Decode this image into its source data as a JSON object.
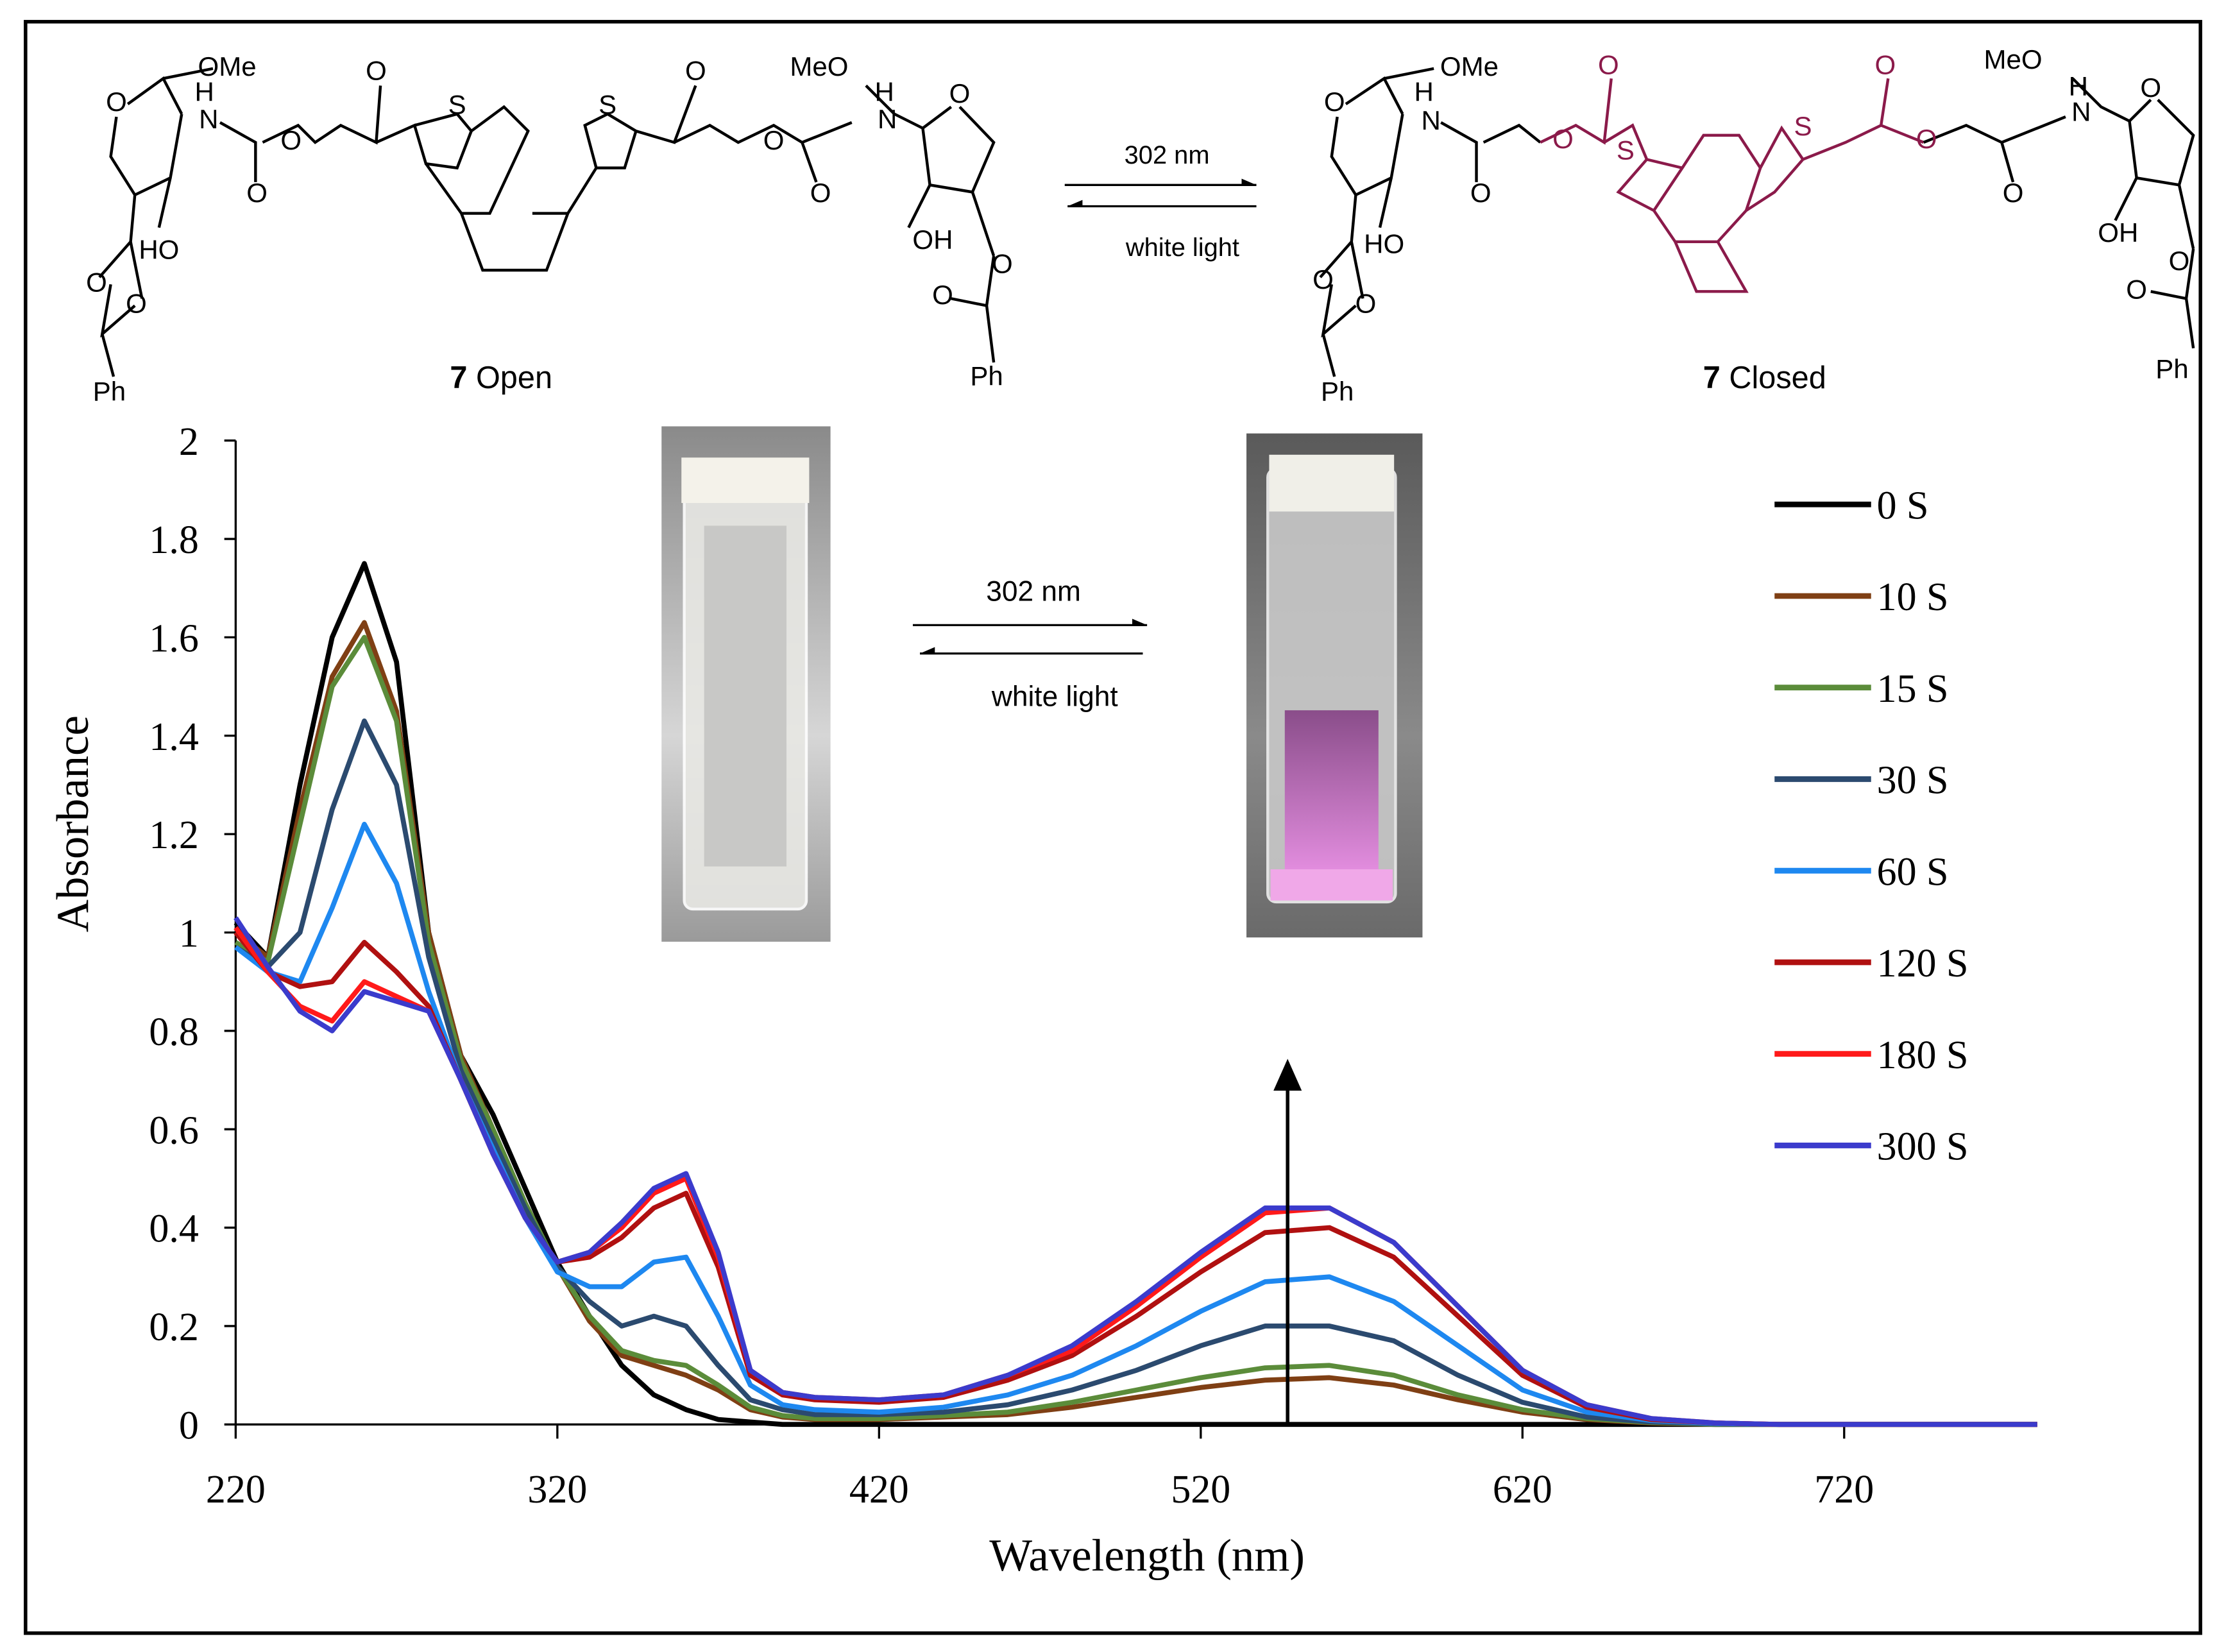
{
  "scheme": {
    "open": {
      "number": "7",
      "name": "Open",
      "atoms": [
        "O",
        "OMe",
        "H",
        "N",
        "O",
        "O",
        "O",
        "S",
        "S",
        "O",
        "O",
        "O",
        "MeO",
        "H",
        "N",
        "O",
        "HO",
        "OH",
        "O",
        "O",
        "O",
        "O",
        "Ph",
        "Ph"
      ]
    },
    "closed": {
      "number": "7",
      "name": "Closed",
      "atoms": [
        "O",
        "OMe",
        "H",
        "N",
        "O",
        "O",
        "O",
        "S",
        "S",
        "O",
        "O",
        "O",
        "MeO",
        "H",
        "N",
        "O",
        "HO",
        "OH",
        "O",
        "O",
        "O",
        "O",
        "Ph",
        "Ph"
      ]
    },
    "top_arrow": {
      "forward": "302 nm",
      "backward": "white light"
    },
    "photo_arrow": {
      "forward": "302 nm",
      "backward": "white light"
    }
  },
  "chart_data": {
    "type": "line",
    "xlabel": "Wavelength (nm)",
    "ylabel": "Absorbance",
    "xlim": [
      220,
      780
    ],
    "ylim": [
      0,
      2
    ],
    "xticks": [
      220,
      320,
      420,
      520,
      620,
      720
    ],
    "yticks": [
      0,
      0.2,
      0.4,
      0.6,
      0.8,
      1,
      1.2,
      1.4,
      1.6,
      1.8,
      2
    ],
    "legend": "right",
    "x": [
      220,
      230,
      240,
      250,
      260,
      270,
      280,
      290,
      300,
      310,
      320,
      330,
      340,
      350,
      360,
      370,
      380,
      390,
      400,
      420,
      440,
      460,
      480,
      500,
      520,
      540,
      560,
      580,
      600,
      620,
      640,
      660,
      680,
      700,
      720,
      740,
      760,
      780
    ],
    "series": [
      {
        "name": "0 S",
        "color": "#000000",
        "values": [
          1.02,
          0.95,
          1.3,
          1.6,
          1.75,
          1.55,
          1.0,
          0.75,
          0.63,
          0.48,
          0.33,
          0.22,
          0.12,
          0.06,
          0.03,
          0.01,
          0.005,
          0,
          0,
          0,
          0,
          0,
          0,
          0,
          0,
          0,
          0,
          0,
          0,
          0,
          0,
          0,
          0,
          0,
          0,
          0,
          0,
          0
        ]
      },
      {
        "name": "10 S",
        "color": "#7f3f14",
        "values": [
          1.0,
          0.95,
          1.25,
          1.52,
          1.63,
          1.45,
          1.0,
          0.75,
          0.6,
          0.45,
          0.32,
          0.21,
          0.14,
          0.12,
          0.1,
          0.07,
          0.03,
          0.015,
          0.01,
          0.01,
          0.015,
          0.02,
          0.035,
          0.055,
          0.075,
          0.09,
          0.095,
          0.08,
          0.05,
          0.025,
          0.01,
          0.003,
          0,
          0,
          0,
          0,
          0,
          0
        ]
      },
      {
        "name": "15 S",
        "color": "#5b8c3a",
        "values": [
          0.98,
          0.94,
          1.22,
          1.5,
          1.6,
          1.43,
          0.98,
          0.74,
          0.6,
          0.45,
          0.32,
          0.22,
          0.15,
          0.13,
          0.12,
          0.08,
          0.035,
          0.018,
          0.012,
          0.012,
          0.018,
          0.025,
          0.045,
          0.07,
          0.095,
          0.115,
          0.12,
          0.1,
          0.06,
          0.03,
          0.012,
          0.004,
          0,
          0,
          0,
          0,
          0,
          0
        ]
      },
      {
        "name": "30 S",
        "color": "#2b4a6f",
        "values": [
          0.97,
          0.93,
          1.0,
          1.25,
          1.43,
          1.3,
          0.95,
          0.72,
          0.58,
          0.44,
          0.32,
          0.25,
          0.2,
          0.22,
          0.2,
          0.12,
          0.05,
          0.03,
          0.02,
          0.02,
          0.025,
          0.04,
          0.07,
          0.11,
          0.16,
          0.2,
          0.2,
          0.17,
          0.1,
          0.045,
          0.015,
          0.005,
          0.001,
          0,
          0,
          0,
          0,
          0
        ]
      },
      {
        "name": "60 S",
        "color": "#1e88f0",
        "values": [
          0.97,
          0.92,
          0.9,
          1.05,
          1.22,
          1.1,
          0.88,
          0.7,
          0.56,
          0.42,
          0.31,
          0.28,
          0.28,
          0.33,
          0.34,
          0.22,
          0.08,
          0.04,
          0.03,
          0.025,
          0.035,
          0.06,
          0.1,
          0.16,
          0.23,
          0.29,
          0.3,
          0.25,
          0.16,
          0.07,
          0.025,
          0.008,
          0.002,
          0,
          0,
          0,
          0,
          0
        ]
      },
      {
        "name": "120 S",
        "color": "#b01010",
        "values": [
          1.0,
          0.92,
          0.89,
          0.9,
          0.98,
          0.92,
          0.85,
          0.7,
          0.55,
          0.42,
          0.33,
          0.34,
          0.38,
          0.44,
          0.47,
          0.32,
          0.1,
          0.06,
          0.05,
          0.045,
          0.055,
          0.09,
          0.14,
          0.22,
          0.31,
          0.39,
          0.4,
          0.34,
          0.22,
          0.1,
          0.035,
          0.01,
          0.003,
          0,
          0,
          0,
          0,
          0
        ]
      },
      {
        "name": "180 S",
        "color": "#ff1a1a",
        "values": [
          1.01,
          0.92,
          0.85,
          0.82,
          0.9,
          0.87,
          0.84,
          0.7,
          0.55,
          0.42,
          0.33,
          0.35,
          0.4,
          0.47,
          0.5,
          0.34,
          0.11,
          0.065,
          0.055,
          0.05,
          0.06,
          0.1,
          0.15,
          0.24,
          0.34,
          0.43,
          0.44,
          0.37,
          0.24,
          0.11,
          0.04,
          0.012,
          0.003,
          0,
          0,
          0,
          0,
          0
        ]
      },
      {
        "name": "300 S",
        "color": "#3b3bcc",
        "values": [
          1.03,
          0.93,
          0.84,
          0.8,
          0.88,
          0.86,
          0.84,
          0.7,
          0.55,
          0.42,
          0.33,
          0.35,
          0.41,
          0.48,
          0.51,
          0.35,
          0.11,
          0.065,
          0.055,
          0.05,
          0.06,
          0.1,
          0.16,
          0.25,
          0.35,
          0.44,
          0.44,
          0.37,
          0.24,
          0.11,
          0.04,
          0.012,
          0.003,
          0,
          0,
          0,
          0,
          0
        ]
      }
    ]
  }
}
